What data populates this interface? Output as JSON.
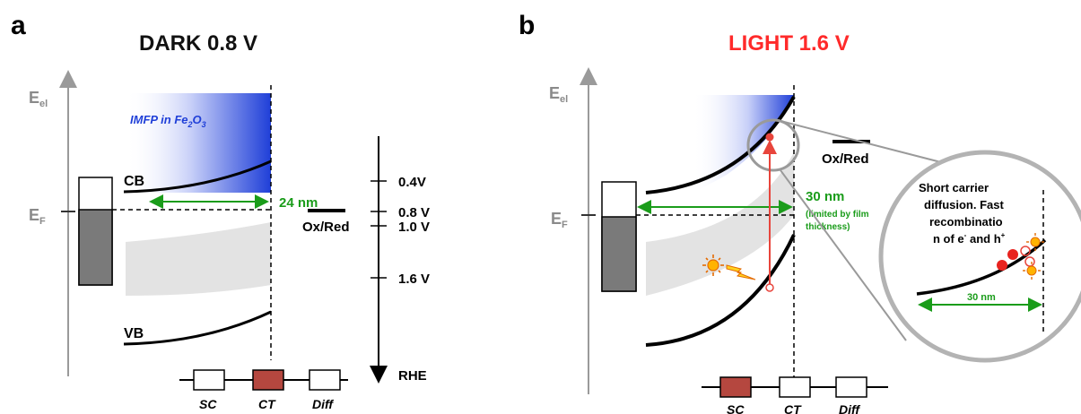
{
  "panel_a": {
    "letter": "a",
    "title": "DARK 0.8 V",
    "axis_label": "E",
    "axis_sub": "el",
    "fermi_label": "E",
    "fermi_sub": "F",
    "cb_label": "CB",
    "vb_label": "VB",
    "imfp_prefix": "IMFP in Fe",
    "imfp_sub1": "2",
    "imfp_mid": "O",
    "imfp_sub2": "3",
    "width_label": "24 nm",
    "redox_label": "Ox/Red",
    "potentials": [
      "0.4V",
      "0.8 V",
      "1.0 V",
      "1.6 V"
    ],
    "reference": "RHE",
    "circuit": [
      "SC",
      "CT",
      "Diff"
    ]
  },
  "panel_b": {
    "letter": "b",
    "title": "LIGHT 1.6 V",
    "axis_label": "E",
    "axis_sub": "el",
    "fermi_label": "E",
    "fermi_sub": "F",
    "width_label": "30 nm",
    "width_note_line1": "(limited by film",
    "width_note_line2": "thickness)",
    "redox_label": "Ox/Red",
    "zoom_text": [
      "Short carrier",
      "diffusion. Fast",
      "recombinatio",
      "n of e",
      "and h"
    ],
    "zoom_sup_e": "-",
    "zoom_sup_h": "+",
    "zoom_width_label": "30 nm",
    "circuit": [
      "SC",
      "CT",
      "Diff"
    ]
  },
  "colors": {
    "dark_title": "#111111",
    "light_title": "#ff2a2a",
    "green": "#1a9c1a",
    "blue": "#1f3fd8",
    "red_arrow": "#e8453c",
    "ct_fill": "#b5473f",
    "grey_axis": "#9a9a9a"
  }
}
